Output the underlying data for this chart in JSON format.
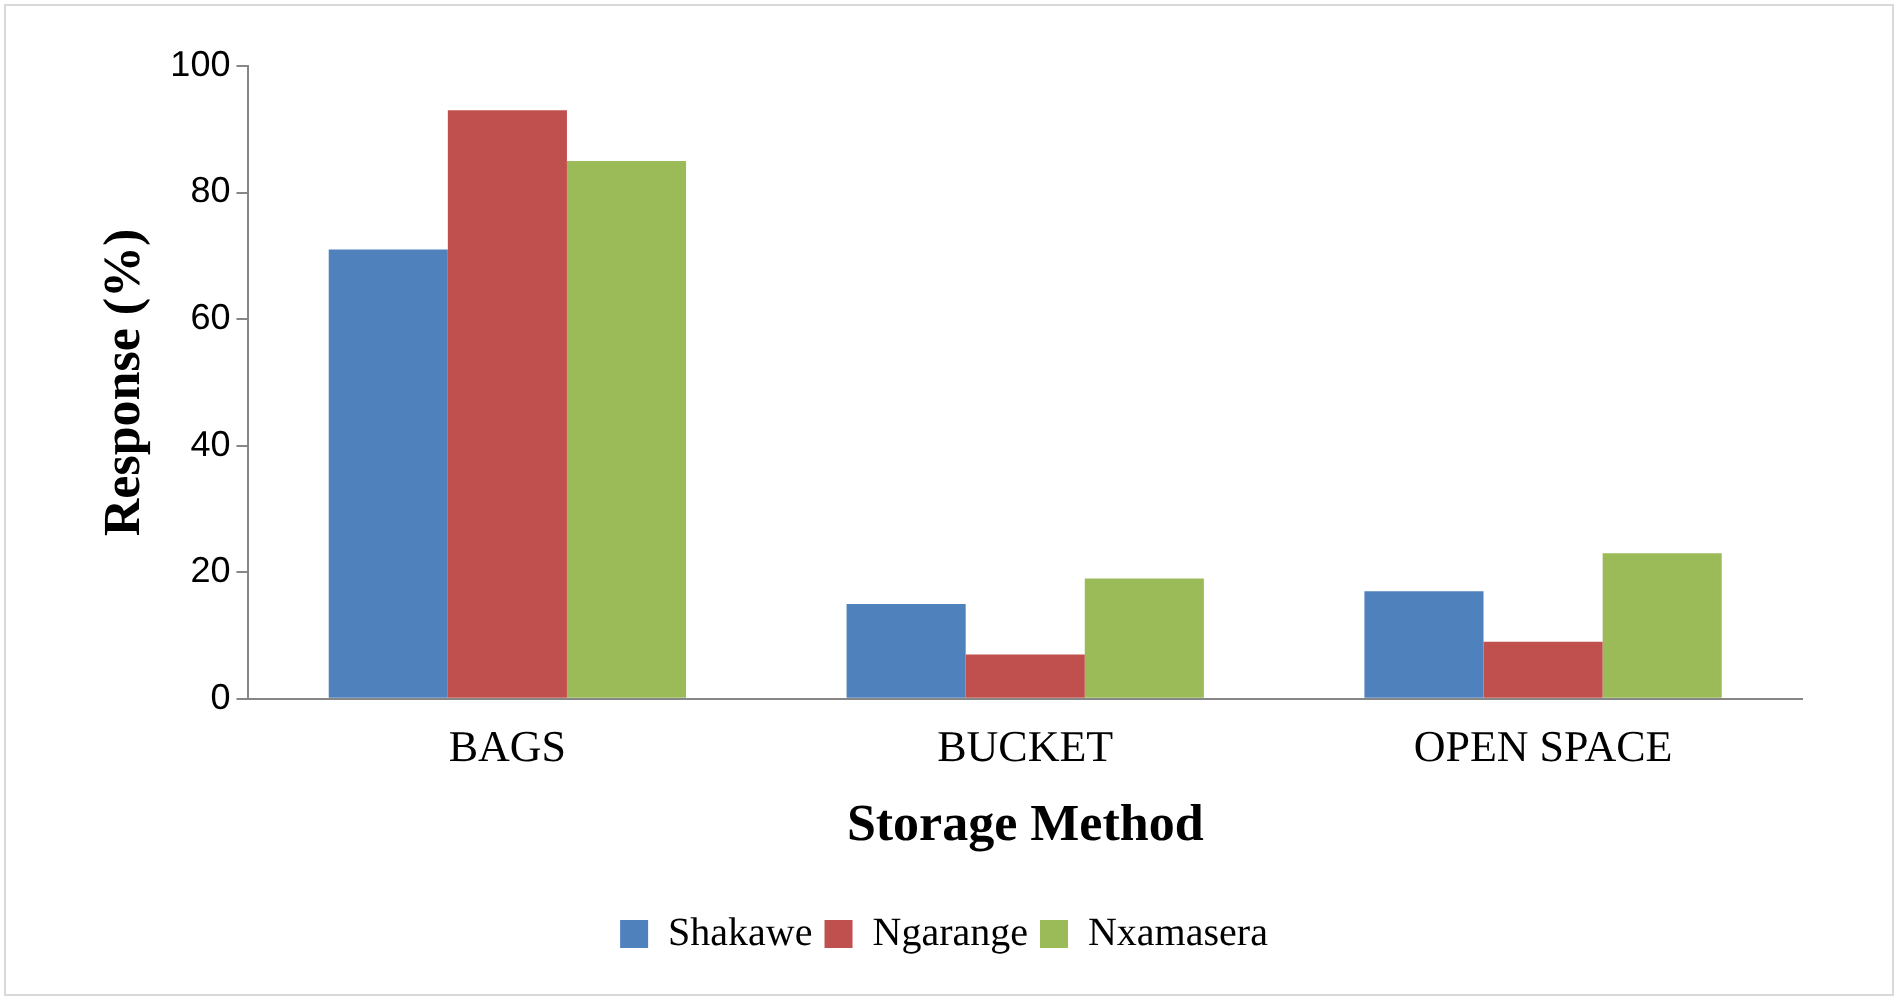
{
  "chart_data": {
    "type": "bar",
    "xlabel": "Storage Method",
    "ylabel": "Response (%)",
    "categories": [
      "BAGS",
      "BUCKET",
      "OPEN SPACE"
    ],
    "series": [
      {
        "name": "Shakawe",
        "color": "#4f81bd",
        "values": [
          71,
          15,
          17
        ]
      },
      {
        "name": "Ngarange",
        "color": "#c0504d",
        "values": [
          93,
          7,
          9
        ]
      },
      {
        "name": "Nxamasera",
        "color": "#9bbb59",
        "values": [
          85,
          19,
          23
        ]
      }
    ],
    "ylim": [
      0,
      100
    ],
    "yticks": [
      0,
      20,
      40,
      60,
      80,
      100
    ],
    "grid": false,
    "legend": "bottom"
  }
}
